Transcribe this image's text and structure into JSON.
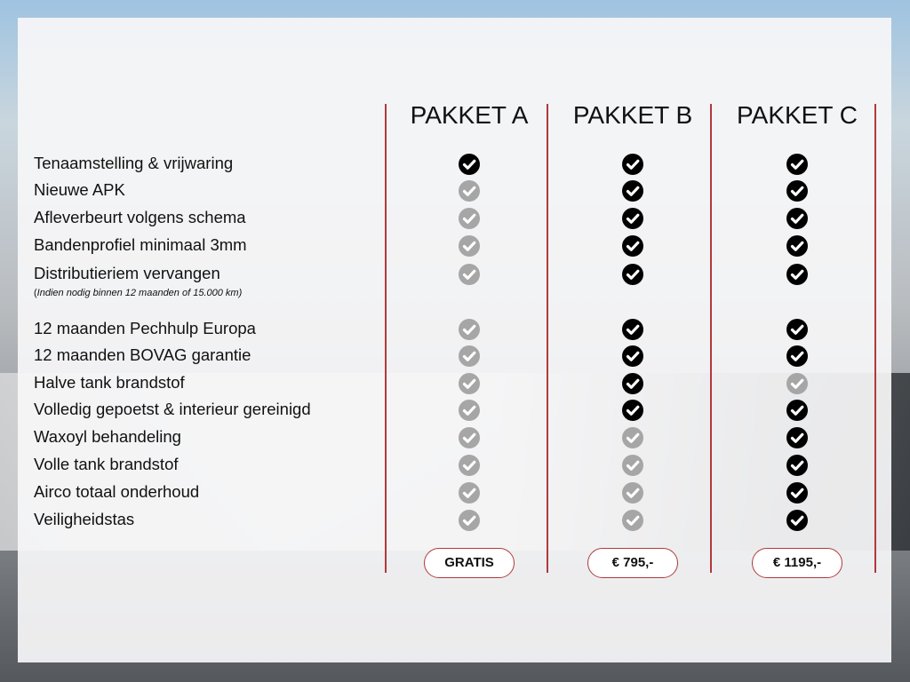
{
  "packages": [
    {
      "name": "PAKKET A",
      "price": "GRATIS"
    },
    {
      "name": "PAKKET B",
      "price": "€ 795,-"
    },
    {
      "name": "PAKKET C",
      "price": "€ 1195,-"
    }
  ],
  "footnote_open": "(",
  "footnote": "Indien nodig binnen 12 maanden of 15.000 km)",
  "features": [
    {
      "label": "Tenaamstelling & vrijwaring",
      "included": [
        true,
        true,
        true
      ]
    },
    {
      "label": "Nieuwe APK",
      "included": [
        false,
        true,
        true
      ]
    },
    {
      "label": "Afleverbeurt volgens schema",
      "included": [
        false,
        true,
        true
      ]
    },
    {
      "label": "Bandenprofiel minimaal 3mm",
      "included": [
        false,
        true,
        true
      ]
    },
    {
      "label": "Distributieriem vervangen",
      "included": [
        false,
        true,
        true
      ]
    },
    {
      "label": "12 maanden Pechhulp Europa",
      "included": [
        false,
        true,
        true
      ]
    },
    {
      "label": "12 maanden BOVAG garantie",
      "included": [
        false,
        true,
        true
      ]
    },
    {
      "label": "Halve tank brandstof",
      "included": [
        false,
        true,
        false
      ]
    },
    {
      "label": "Volledig gepoetst & interieur gereinigd",
      "included": [
        false,
        true,
        true
      ]
    },
    {
      "label": "Waxoyl behandeling",
      "included": [
        false,
        false,
        true
      ]
    },
    {
      "label": "Volle tank brandstof",
      "included": [
        false,
        false,
        true
      ]
    },
    {
      "label": "Airco totaal onderhoud",
      "included": [
        false,
        false,
        true
      ]
    },
    {
      "label": "Veiligheidstas",
      "included": [
        false,
        false,
        true
      ]
    }
  ],
  "colors": {
    "divider": "#b0393d",
    "check_on": "#000000",
    "check_off": "#a6a6a6"
  }
}
